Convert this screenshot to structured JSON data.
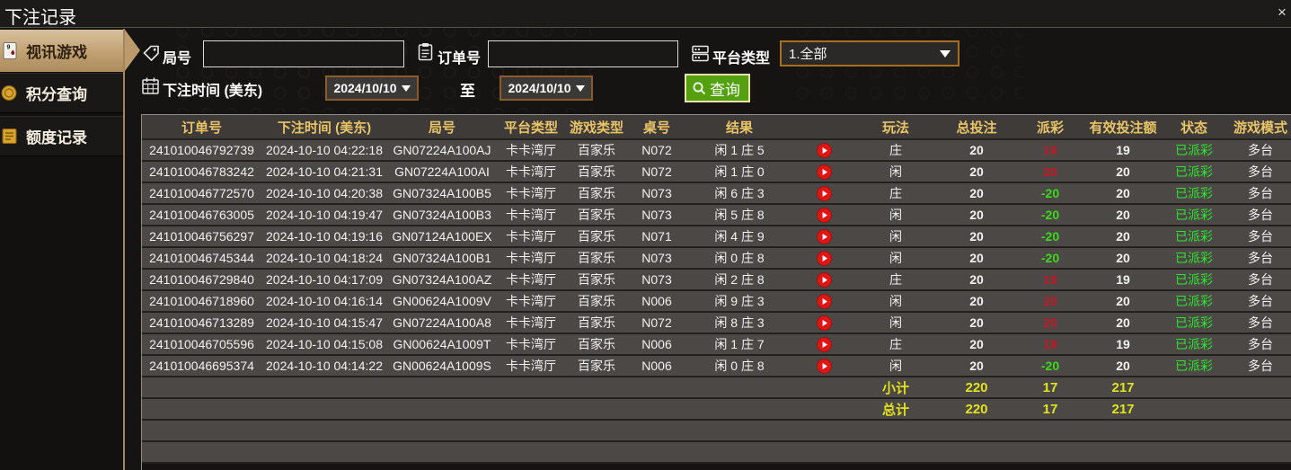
{
  "window": {
    "title": "下注记录",
    "close": "×"
  },
  "sidebar": {
    "items": [
      {
        "label": "视讯游戏",
        "icon": "playing-card",
        "active": true
      },
      {
        "label": "积分查询",
        "icon": "gold-coin",
        "active": false
      },
      {
        "label": "额度记录",
        "icon": "gold-ledger",
        "active": false
      }
    ]
  },
  "filters": {
    "round_label": "局号",
    "round_value": "",
    "order_label": "订单号",
    "order_value": "",
    "platform_label": "平台类型",
    "platform_value": "1.全部",
    "time_label": "下注时间 (美东)",
    "date_from": "2024/10/10",
    "to_label": "至",
    "date_to": "2024/10/10",
    "search_label": "查询"
  },
  "table": {
    "headers": [
      "订单号",
      "下注时间 (美东)",
      "局号",
      "平台类型",
      "游戏类型",
      "桌号",
      "结果",
      "",
      "玩法",
      "总投注",
      "派彩",
      "有效投注额",
      "状态",
      "游戏模式"
    ],
    "rows": [
      {
        "order_id": "241010046792739",
        "bet_time": "2024-10-10 04:22:18",
        "round_id": "GN07224A100AJ",
        "platform": "卡卡湾厅",
        "game_type": "百家乐",
        "table_no": "N072",
        "result": "闲 1 庄 5",
        "play": "庄",
        "total_bet": "20",
        "payout": "19",
        "valid_bet": "19",
        "status": "已派彩",
        "game_mode": "多台"
      },
      {
        "order_id": "241010046783242",
        "bet_time": "2024-10-10 04:21:31",
        "round_id": "GN07224A100AI",
        "platform": "卡卡湾厅",
        "game_type": "百家乐",
        "table_no": "N072",
        "result": "闲 1 庄 0",
        "play": "闲",
        "total_bet": "20",
        "payout": "20",
        "valid_bet": "20",
        "status": "已派彩",
        "game_mode": "多台"
      },
      {
        "order_id": "241010046772570",
        "bet_time": "2024-10-10 04:20:38",
        "round_id": "GN07324A100B5",
        "platform": "卡卡湾厅",
        "game_type": "百家乐",
        "table_no": "N073",
        "result": "闲 6 庄 3",
        "play": "庄",
        "total_bet": "20",
        "payout": "-20",
        "valid_bet": "20",
        "status": "已派彩",
        "game_mode": "多台"
      },
      {
        "order_id": "241010046763005",
        "bet_time": "2024-10-10 04:19:47",
        "round_id": "GN07324A100B3",
        "platform": "卡卡湾厅",
        "game_type": "百家乐",
        "table_no": "N073",
        "result": "闲 5 庄 8",
        "play": "闲",
        "total_bet": "20",
        "payout": "-20",
        "valid_bet": "20",
        "status": "已派彩",
        "game_mode": "多台"
      },
      {
        "order_id": "241010046756297",
        "bet_time": "2024-10-10 04:19:16",
        "round_id": "GN07124A100EX",
        "platform": "卡卡湾厅",
        "game_type": "百家乐",
        "table_no": "N071",
        "result": "闲 4 庄 9",
        "play": "闲",
        "total_bet": "20",
        "payout": "-20",
        "valid_bet": "20",
        "status": "已派彩",
        "game_mode": "多台"
      },
      {
        "order_id": "241010046745344",
        "bet_time": "2024-10-10 04:18:24",
        "round_id": "GN07324A100B1",
        "platform": "卡卡湾厅",
        "game_type": "百家乐",
        "table_no": "N073",
        "result": "闲 0 庄 8",
        "play": "闲",
        "total_bet": "20",
        "payout": "-20",
        "valid_bet": "20",
        "status": "已派彩",
        "game_mode": "多台"
      },
      {
        "order_id": "241010046729840",
        "bet_time": "2024-10-10 04:17:09",
        "round_id": "GN07324A100AZ",
        "platform": "卡卡湾厅",
        "game_type": "百家乐",
        "table_no": "N073",
        "result": "闲 2 庄 8",
        "play": "庄",
        "total_bet": "20",
        "payout": "19",
        "valid_bet": "19",
        "status": "已派彩",
        "game_mode": "多台"
      },
      {
        "order_id": "241010046718960",
        "bet_time": "2024-10-10 04:16:14",
        "round_id": "GN00624A1009V",
        "platform": "卡卡湾厅",
        "game_type": "百家乐",
        "table_no": "N006",
        "result": "闲 9 庄 3",
        "play": "闲",
        "total_bet": "20",
        "payout": "20",
        "valid_bet": "20",
        "status": "已派彩",
        "game_mode": "多台"
      },
      {
        "order_id": "241010046713289",
        "bet_time": "2024-10-10 04:15:47",
        "round_id": "GN07224A100A8",
        "platform": "卡卡湾厅",
        "game_type": "百家乐",
        "table_no": "N072",
        "result": "闲 8 庄 3",
        "play": "闲",
        "total_bet": "20",
        "payout": "20",
        "valid_bet": "20",
        "status": "已派彩",
        "game_mode": "多台"
      },
      {
        "order_id": "241010046705596",
        "bet_time": "2024-10-10 04:15:08",
        "round_id": "GN00624A1009T",
        "platform": "卡卡湾厅",
        "game_type": "百家乐",
        "table_no": "N006",
        "result": "闲 1 庄 7",
        "play": "庄",
        "total_bet": "20",
        "payout": "19",
        "valid_bet": "19",
        "status": "已派彩",
        "game_mode": "多台"
      },
      {
        "order_id": "241010046695374",
        "bet_time": "2024-10-10 04:14:22",
        "round_id": "GN00624A1009S",
        "platform": "卡卡湾厅",
        "game_type": "百家乐",
        "table_no": "N006",
        "result": "闲 0 庄 8",
        "play": "闲",
        "total_bet": "20",
        "payout": "-20",
        "valid_bet": "20",
        "status": "已派彩",
        "game_mode": "多台"
      }
    ],
    "summary_rows": [
      {
        "label": "小计",
        "total_bet": "220",
        "payout": "17",
        "valid_bet": "217"
      },
      {
        "label": "总计",
        "total_bet": "220",
        "payout": "17",
        "valid_bet": "217"
      }
    ]
  },
  "colors": {
    "header_gold": "#e9c468",
    "payout_positive_red": "#c41723",
    "payout_negative_green": "#3fd91b",
    "status_green": "#2ee62e",
    "summary_yellow": "#e3e31c",
    "search_button_green": "#55a00f",
    "active_tab_tan": "#c0a173",
    "row_gray": "#4b4846"
  }
}
